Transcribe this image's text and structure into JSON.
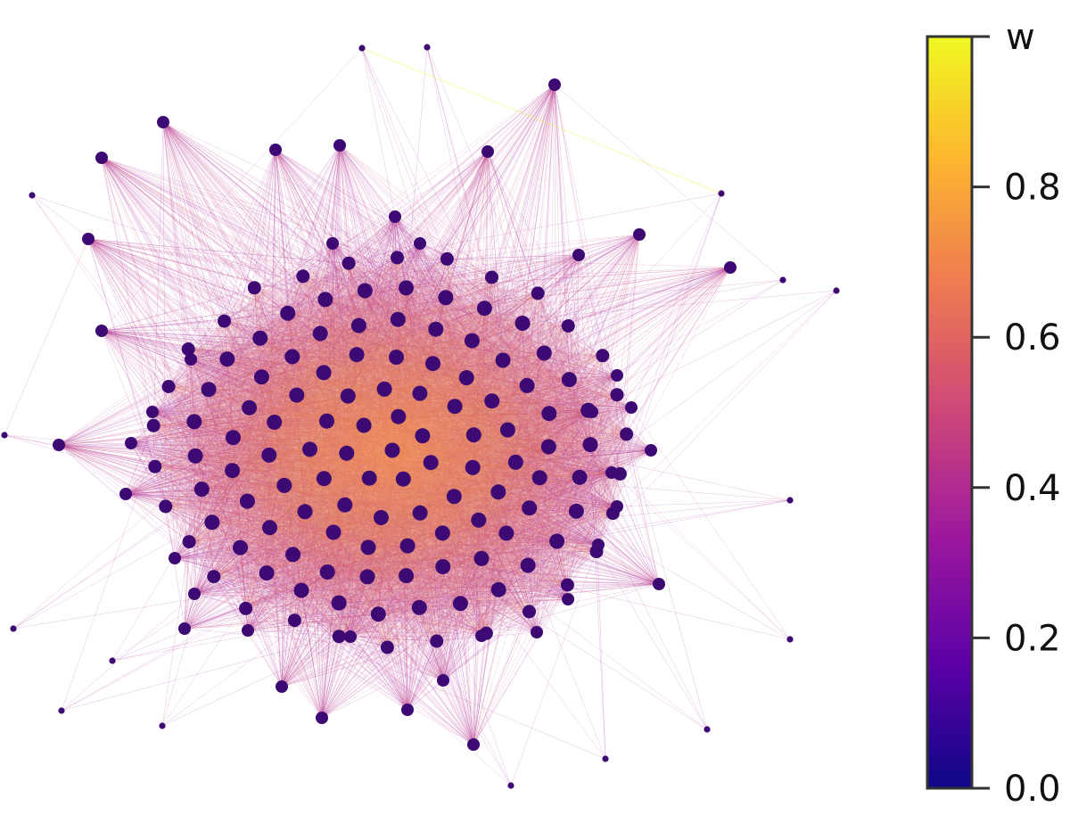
{
  "figure": {
    "type": "network-graph",
    "colormap": "plasma",
    "node_color": "#3d0a73",
    "colorbar": {
      "title": "w",
      "range": [
        0.0,
        1.0
      ],
      "ticks": [
        {
          "value": 0.0,
          "label": "0.0"
        },
        {
          "value": 0.2,
          "label": "0.2"
        },
        {
          "value": 0.4,
          "label": "0.4"
        },
        {
          "value": 0.6,
          "label": "0.6"
        },
        {
          "value": 0.8,
          "label": "0.8"
        }
      ],
      "gradient_stops": [
        "#0d0887",
        "#5c01a6",
        "#9c179e",
        "#cc4778",
        "#ed7953",
        "#fdb42f",
        "#f0f921"
      ]
    }
  }
}
